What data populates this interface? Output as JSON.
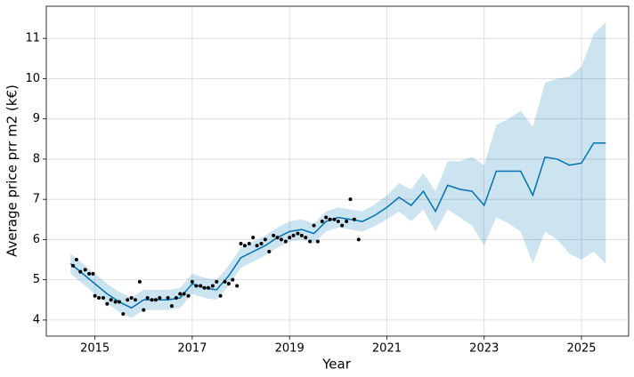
{
  "chart_data": {
    "type": "line",
    "xlabel": "Year",
    "ylabel": "Average price prr m2 (k€)",
    "xlim": [
      2014.0,
      2025.97
    ],
    "ylim": [
      3.6,
      11.8
    ],
    "xticks": [
      2015,
      2017,
      2019,
      2021,
      2023,
      2025
    ],
    "yticks": [
      4,
      5,
      6,
      7,
      8,
      9,
      10,
      11
    ],
    "grid": true,
    "series": [
      {
        "type": "area",
        "color": "#0072b2",
        "x": [
          2014.5,
          2014.75,
          2015,
          2015.25,
          2015.5,
          2015.75,
          2016,
          2016.25,
          2016.5,
          2016.75,
          2017,
          2017.25,
          2017.5,
          2017.75,
          2018,
          2018.25,
          2018.5,
          2018.75,
          2019,
          2019.25,
          2019.5,
          2019.75,
          2020,
          2020.25,
          2020.5,
          2020.75,
          2021,
          2021.25,
          2021.5,
          2021.75,
          2022,
          2022.25,
          2022.5,
          2022.75,
          2023,
          2023.25,
          2023.5,
          2023.75,
          2024,
          2024.25,
          2024.5,
          2024.75,
          2025,
          2025.25,
          2025.5
        ],
        "lower": [
          5.15,
          4.9,
          4.65,
          4.4,
          4.2,
          4.05,
          4.25,
          4.25,
          4.25,
          4.3,
          4.65,
          4.55,
          4.5,
          4.85,
          5.3,
          5.45,
          5.6,
          5.8,
          5.95,
          6.0,
          5.9,
          6.2,
          6.3,
          6.25,
          6.2,
          6.33,
          6.5,
          6.7,
          6.45,
          6.75,
          6.2,
          6.75,
          6.55,
          6.35,
          5.85,
          6.55,
          6.4,
          6.2,
          5.4,
          6.2,
          6.0,
          5.65,
          5.5,
          5.7,
          5.4
        ],
        "upper": [
          5.65,
          5.4,
          5.15,
          4.9,
          4.7,
          4.55,
          4.75,
          4.75,
          4.75,
          4.8,
          5.15,
          5.05,
          5.0,
          5.35,
          5.8,
          5.95,
          6.1,
          6.3,
          6.45,
          6.5,
          6.4,
          6.7,
          6.8,
          6.75,
          6.7,
          6.87,
          7.1,
          7.4,
          7.25,
          7.65,
          7.2,
          7.95,
          7.95,
          8.05,
          7.85,
          8.85,
          9.0,
          9.2,
          8.8,
          9.9,
          10.0,
          10.05,
          10.3,
          11.1,
          11.4
        ]
      },
      {
        "type": "line",
        "color": "#0072b2",
        "x": [
          2014.5,
          2014.75,
          2015,
          2015.25,
          2015.5,
          2015.75,
          2016,
          2016.25,
          2016.5,
          2016.75,
          2017,
          2017.25,
          2017.5,
          2017.75,
          2018,
          2018.25,
          2018.5,
          2018.75,
          2019,
          2019.25,
          2019.5,
          2019.75,
          2020,
          2020.25,
          2020.5,
          2020.75,
          2021,
          2021.25,
          2021.5,
          2021.75,
          2022,
          2022.25,
          2022.5,
          2022.75,
          2023,
          2023.25,
          2023.5,
          2023.75,
          2024,
          2024.25,
          2024.5,
          2024.75,
          2025,
          2025.25,
          2025.5
        ],
        "values": [
          5.4,
          5.15,
          4.9,
          4.65,
          4.45,
          4.3,
          4.5,
          4.5,
          4.5,
          4.55,
          4.9,
          4.8,
          4.75,
          5.1,
          5.55,
          5.7,
          5.85,
          6.05,
          6.2,
          6.25,
          6.15,
          6.45,
          6.55,
          6.5,
          6.45,
          6.6,
          6.8,
          7.05,
          6.85,
          7.2,
          6.7,
          7.35,
          7.25,
          7.2,
          6.85,
          7.7,
          7.7,
          7.7,
          7.1,
          8.05,
          8.0,
          7.85,
          7.9,
          8.4,
          8.4
        ]
      },
      {
        "type": "scatter",
        "color": "#000000",
        "x": [
          2014.55,
          2014.62,
          2014.7,
          2014.8,
          2014.88,
          2014.96,
          2015.0,
          2015.08,
          2015.17,
          2015.25,
          2015.33,
          2015.42,
          2015.5,
          2015.58,
          2015.67,
          2015.75,
          2015.83,
          2015.92,
          2016.0,
          2016.08,
          2016.17,
          2016.25,
          2016.33,
          2016.5,
          2016.58,
          2016.67,
          2016.75,
          2016.83,
          2016.92,
          2017.0,
          2017.08,
          2017.17,
          2017.25,
          2017.33,
          2017.42,
          2017.5,
          2017.58,
          2017.67,
          2017.75,
          2017.83,
          2017.92,
          2018.0,
          2018.08,
          2018.17,
          2018.25,
          2018.33,
          2018.42,
          2018.5,
          2018.58,
          2018.67,
          2018.75,
          2018.83,
          2018.92,
          2019.0,
          2019.08,
          2019.17,
          2019.25,
          2019.33,
          2019.42,
          2019.5,
          2019.58,
          2019.67,
          2019.75,
          2019.83,
          2019.92,
          2020.0,
          2020.08,
          2020.17,
          2020.25,
          2020.33,
          2020.42
        ],
        "values": [
          5.35,
          5.5,
          5.2,
          5.25,
          5.15,
          5.15,
          4.6,
          4.55,
          4.55,
          4.4,
          4.5,
          4.45,
          4.45,
          4.15,
          4.5,
          4.55,
          4.5,
          4.95,
          4.25,
          4.55,
          4.5,
          4.5,
          4.55,
          4.55,
          4.35,
          4.55,
          4.65,
          4.65,
          4.6,
          4.95,
          4.85,
          4.85,
          4.8,
          4.8,
          4.85,
          4.95,
          4.6,
          4.95,
          4.9,
          5.0,
          4.85,
          5.9,
          5.85,
          5.9,
          6.05,
          5.85,
          5.9,
          6.0,
          5.7,
          6.1,
          6.05,
          6.0,
          5.95,
          6.05,
          6.1,
          6.15,
          6.1,
          6.05,
          5.95,
          6.35,
          5.95,
          6.45,
          6.55,
          6.5,
          6.5,
          6.45,
          6.35,
          6.45,
          7.0,
          6.5,
          6.0
        ]
      }
    ]
  }
}
